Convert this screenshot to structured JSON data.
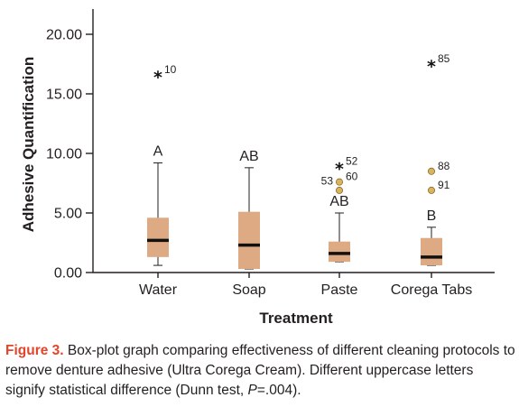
{
  "chart_data": {
    "type": "box",
    "xlabel": "Treatment",
    "ylabel": "Adhesive Quantification",
    "ylim": [
      0,
      22
    ],
    "yticks": [
      "0.00",
      "5.00",
      "10.00",
      "15.00",
      "20.00"
    ],
    "categories": [
      "Water",
      "Soap",
      "Paste",
      "Corega Tabs"
    ],
    "boxes": [
      {
        "category": "Water",
        "whisker_low": 0.6,
        "q1": 1.3,
        "median": 2.7,
        "q3": 4.6,
        "whisker_high": 9.2,
        "letter": "A",
        "outliers": [
          {
            "value": 16.6,
            "label": "10",
            "marker": "*"
          }
        ]
      },
      {
        "category": "Soap",
        "whisker_low": 0.3,
        "q1": 0.3,
        "median": 2.3,
        "q3": 5.1,
        "whisker_high": 8.8,
        "letter": "AB",
        "outliers": []
      },
      {
        "category": "Paste",
        "whisker_low": 0.9,
        "q1": 0.9,
        "median": 1.6,
        "q3": 2.6,
        "whisker_high": 5.0,
        "letter": "AB",
        "outliers": [
          {
            "value": 8.9,
            "label": "52",
            "marker": "*"
          },
          {
            "value": 7.6,
            "label": "60",
            "marker": "o"
          },
          {
            "value": 6.9,
            "label": "",
            "marker": "o"
          }
        ],
        "extra_label": "53"
      },
      {
        "category": "Corega Tabs",
        "whisker_low": 0.6,
        "q1": 0.6,
        "median": 1.3,
        "q3": 2.9,
        "whisker_high": 3.8,
        "letter": "B",
        "outliers": [
          {
            "value": 17.5,
            "label": "85",
            "marker": "*"
          },
          {
            "value": 8.5,
            "label": "88",
            "marker": "o"
          },
          {
            "value": 6.9,
            "label": "91",
            "marker": "o"
          }
        ]
      }
    ],
    "colors": {
      "box_fill": "#deaa84",
      "median": "#111111",
      "whisker": "#231f20",
      "outlier_fill": "#d9b45e",
      "outlier_stroke": "#8a6a2a",
      "axis": "#231f20"
    }
  },
  "caption": {
    "figure_label": "Figure 3.",
    "text": " Box-plot graph comparing effectiveness of different cleaning protocols to remove denture adhesive (Ultra Corega Cream). Different uppercase letters signify statistical difference (Dunn test, ",
    "p_label": "P",
    "p_tail": "=.004)."
  }
}
